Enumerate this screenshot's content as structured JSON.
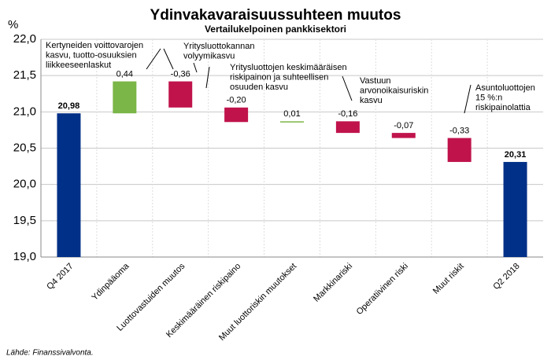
{
  "chart_data": {
    "type": "waterfall",
    "title": "Ydinvakavaraisuussuhteen muutos",
    "subtitle": "Vertailukelpoinen pankkisektori",
    "y_label": "%",
    "source": "Lähde: Finanssivalvonta.",
    "categories": [
      "Q4 2017",
      "Ydinpääoma",
      "Luottovastuiden muutos",
      "Keskimääräinen riskipaino",
      "Muut luottoriskin muutokset",
      "Markkinariski",
      "Operatiivinen riski",
      "Muut riskit",
      "Q2 2018"
    ],
    "values": [
      20.98,
      0.44,
      -0.36,
      -0.2,
      0.01,
      -0.16,
      -0.07,
      -0.33,
      20.31
    ],
    "value_labels": [
      "20,98",
      "0,44",
      "-0,36",
      "-0,20",
      "0,01",
      "-0,16",
      "-0,07",
      "-0,33",
      "20,31"
    ],
    "is_total": [
      true,
      false,
      false,
      false,
      false,
      false,
      false,
      false,
      true
    ],
    "colors": [
      "#003087",
      "#7ab648",
      "#c0134c",
      "#c0134c",
      "#7ab648",
      "#c0134c",
      "#c0134c",
      "#c0134c",
      "#003087"
    ],
    "ylim": [
      19.0,
      22.0
    ],
    "yticks": [
      {
        "value": 19.0,
        "label": "19,0"
      },
      {
        "value": 19.5,
        "label": "19,5"
      },
      {
        "value": 20.0,
        "label": "20,0"
      },
      {
        "value": 20.5,
        "label": "20,5"
      },
      {
        "value": 21.0,
        "label": "21,0"
      },
      {
        "value": 21.5,
        "label": "21,5"
      },
      {
        "value": 22.0,
        "label": "22,0"
      }
    ],
    "grid": true,
    "annotations": [
      {
        "lines": [
          "Kertyneiden voittovarojen",
          "kasvu, tuotto-osuuksien",
          "liikkeeseenlaskut"
        ]
      },
      {
        "lines": [
          "Yritysluottokannan",
          "volyymikasvu"
        ]
      },
      {
        "lines": [
          "Yritysluottojen keskimääräisen",
          "riskipainon ja suhteellisen",
          "osuuden kasvu"
        ]
      },
      {
        "lines": [
          "Vastuun",
          "arvonoikaisuriskin",
          "kasvu"
        ]
      },
      {
        "lines": [
          "Asuntoluottojen",
          "15 %:n",
          "riskipainolattia"
        ]
      }
    ]
  }
}
